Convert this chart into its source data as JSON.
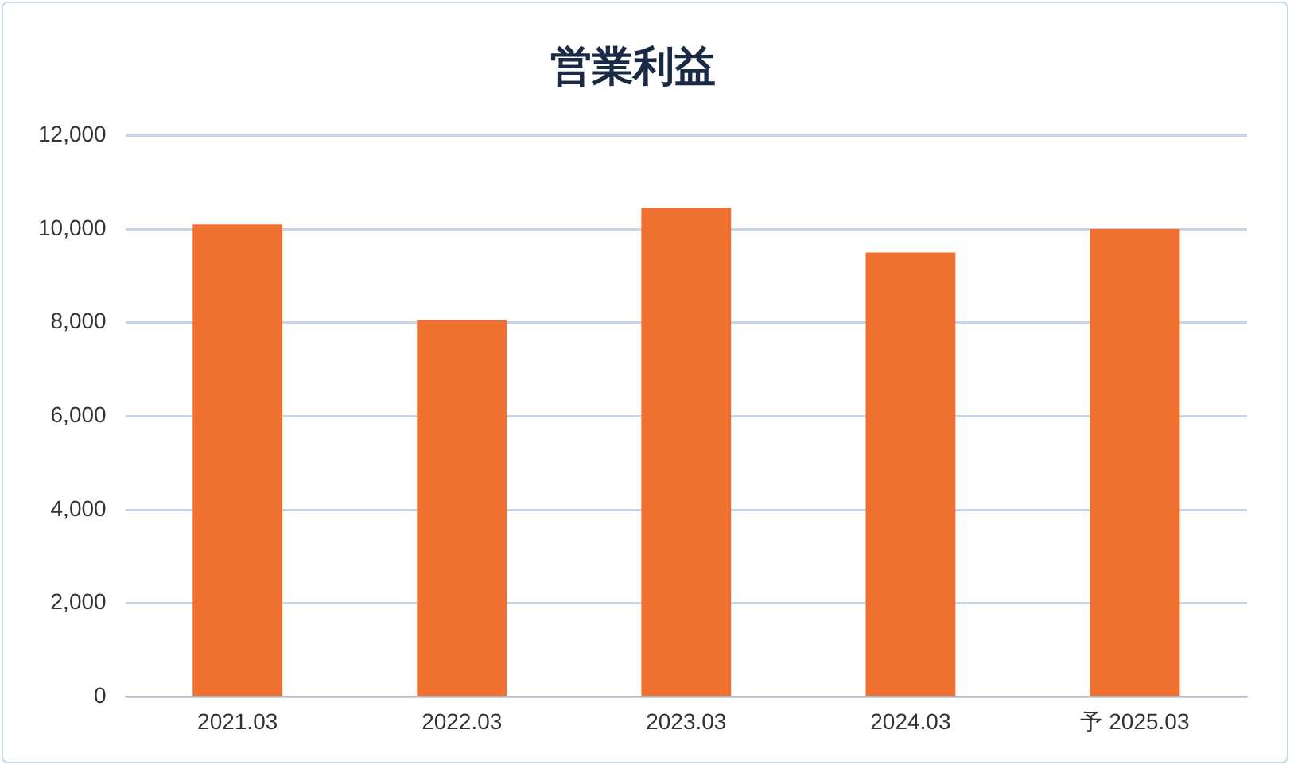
{
  "chart_data": {
    "type": "bar",
    "title": "営業利益",
    "categories": [
      "2021.03",
      "2022.03",
      "2023.03",
      "2024.03",
      "予 2025.03"
    ],
    "values": [
      10100,
      8050,
      10450,
      9500,
      10000
    ],
    "color": "#f07030",
    "ylim": [
      0,
      12000
    ],
    "yticks": [
      0,
      {
        "value": 2000,
        "label": "2,000"
      },
      {
        "value": 4000,
        "label": "4,000"
      },
      {
        "value": 6000,
        "label": "6,000"
      },
      {
        "value": 8000,
        "label": "8,000"
      },
      {
        "value": 10000,
        "label": "10,000"
      },
      {
        "value": 12000,
        "label": "12,000"
      }
    ],
    "grid": "y",
    "legend": false
  }
}
